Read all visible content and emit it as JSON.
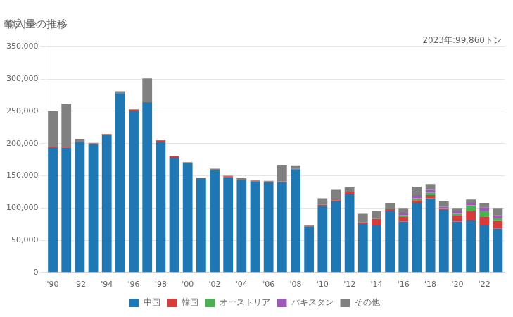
{
  "chart_data": {
    "type": "bar",
    "stacked": true,
    "title": "輸入量の推移",
    "ylabel": "単位トン",
    "annotation": "2023年:99,860トン",
    "categories": [
      "'90",
      null,
      "'92",
      null,
      "'94",
      null,
      "'96",
      null,
      "'98",
      null,
      "'00",
      null,
      "'02",
      null,
      "'04",
      null,
      "'06",
      null,
      "'08",
      null,
      "'10",
      null,
      "'12",
      null,
      "'14",
      null,
      "'16",
      null,
      "'18",
      null,
      "'20",
      null,
      "'22",
      null
    ],
    "series": [
      {
        "name": "中国",
        "color": "#1f77b4",
        "values": [
          193000,
          194000,
          202000,
          199000,
          213000,
          278000,
          251000,
          263000,
          203000,
          179000,
          169000,
          145000,
          158000,
          148000,
          143000,
          141000,
          140000,
          140000,
          160000,
          71000,
          103000,
          110000,
          122000,
          75000,
          73000,
          95000,
          79000,
          109000,
          115000,
          97000,
          79000,
          81000,
          74000,
          68000
        ]
      },
      {
        "name": "韓国",
        "color": "#d63c3c",
        "values": [
          2000,
          1000,
          1000,
          1000,
          1000,
          1000,
          1000,
          1000,
          1000,
          1000,
          1000,
          1000,
          1000,
          1000,
          1000,
          1000,
          1000,
          1000,
          1000,
          1000,
          2000,
          2000,
          3000,
          3000,
          10000,
          3000,
          8000,
          3000,
          5000,
          2000,
          10000,
          15000,
          12000,
          12000
        ]
      },
      {
        "name": "オーストリア",
        "color": "#4caf50",
        "values": [
          0,
          0,
          0,
          0,
          0,
          0,
          0,
          0,
          0,
          0,
          0,
          0,
          0,
          0,
          0,
          0,
          0,
          0,
          0,
          0,
          0,
          0,
          0,
          0,
          0,
          0,
          2000,
          3000,
          4000,
          1000,
          2000,
          8000,
          10000,
          5000
        ]
      },
      {
        "name": "パキスタン",
        "color": "#9c59b6",
        "values": [
          0,
          0,
          0,
          0,
          0,
          0,
          0,
          0,
          0,
          0,
          0,
          0,
          0,
          0,
          0,
          0,
          0,
          0,
          0,
          0,
          0,
          0,
          0,
          0,
          0,
          0,
          3000,
          5000,
          4000,
          2000,
          5000,
          4000,
          5000,
          4000
        ]
      },
      {
        "name": "その他",
        "color": "#808080",
        "values": [
          55000,
          67000,
          4000,
          1000,
          1000,
          2000,
          1000,
          37000,
          1000,
          1000,
          1000,
          1000,
          2000,
          1000,
          2000,
          1000,
          1000,
          26000,
          5000,
          1000,
          10000,
          16000,
          7000,
          13000,
          12000,
          10000,
          8000,
          13000,
          9000,
          8000,
          4000,
          5000,
          7000,
          11000
        ]
      }
    ],
    "ylim": [
      0,
      370000
    ],
    "yticks": [
      0,
      {
        "value": 50000,
        "label": "50,000"
      },
      {
        "value": 100000,
        "label": "100,000"
      },
      {
        "value": 150000,
        "label": "150,000"
      },
      {
        "value": 200000,
        "label": "200,000"
      },
      {
        "value": 250000,
        "label": "250,000"
      },
      {
        "value": 300000,
        "label": "300,000"
      },
      {
        "value": 350000,
        "label": "350,000"
      }
    ],
    "grid": "y",
    "legend": "bottom"
  }
}
